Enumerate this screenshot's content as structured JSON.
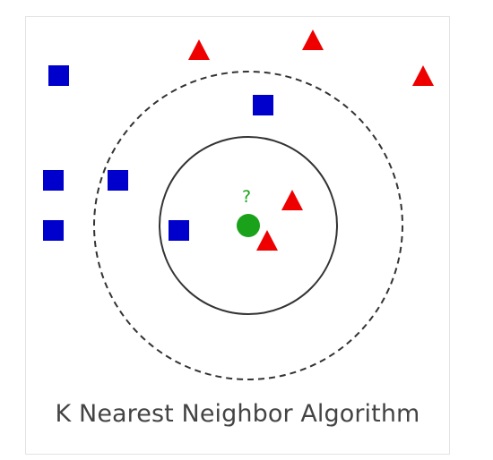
{
  "caption": "K Nearest Neighbor Algorithm",
  "query_label": "?",
  "colors": {
    "class_square": "#0000cc",
    "class_triangle": "#ee0000",
    "query_point": "#1aa31a",
    "circle_stroke": "#333333",
    "frame_border": "#e3e3e3",
    "caption_text": "#444444"
  },
  "legend_shapes": {
    "square_class": "blue-square",
    "triangle_class": "red-triangle",
    "query": "green-circle"
  }
}
